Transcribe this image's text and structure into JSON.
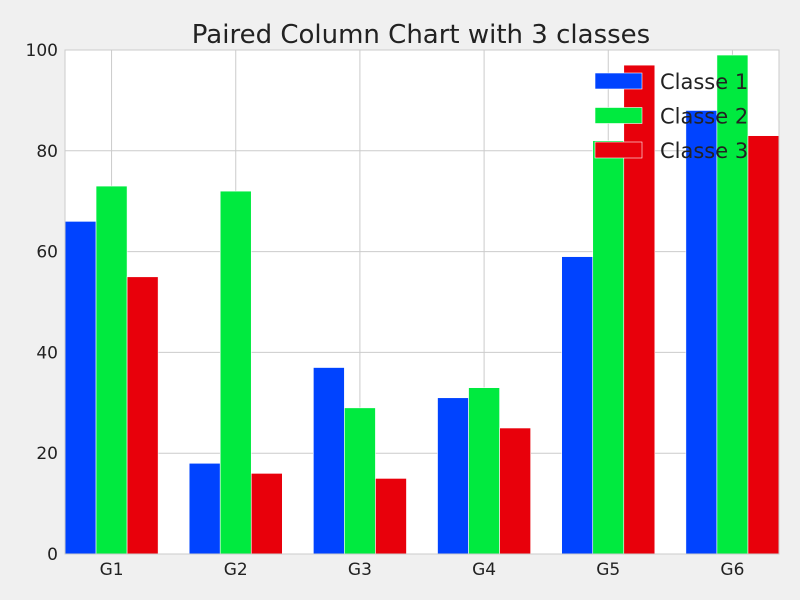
{
  "chart_data": {
    "type": "bar",
    "title": "Paired Column Chart with 3 classes",
    "xlabel": "",
    "ylabel": "",
    "categories": [
      "G1",
      "G2",
      "G3",
      "G4",
      "G5",
      "G6"
    ],
    "series": [
      {
        "name": "Classe 1",
        "color": "#0043ff",
        "values": [
          66,
          18,
          37,
          31,
          59,
          88
        ]
      },
      {
        "name": "Classe 2",
        "color": "#00ea3f",
        "values": [
          73,
          72,
          29,
          33,
          82,
          99
        ]
      },
      {
        "name": "Classe 3",
        "color": "#e8000b",
        "values": [
          55,
          16,
          15,
          25,
          97,
          83
        ]
      }
    ],
    "ylim": [
      0,
      100
    ],
    "yticks": [
      0,
      20,
      40,
      60,
      80,
      100
    ],
    "grid": true,
    "legend_position": "top-right",
    "background_color": "#ffffff",
    "figure_color": "#f0f0f0",
    "grid_color": "#cbcbcb"
  }
}
